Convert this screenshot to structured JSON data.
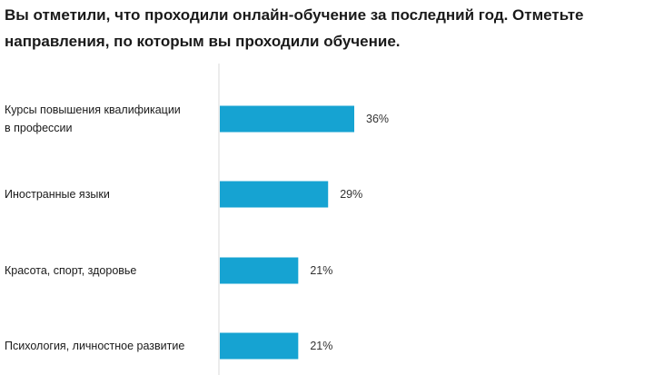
{
  "title": "Вы отметили, что проходили онлайн-обучение за последний год. Отметьте направления, по которым вы проходили обучение.",
  "chart_data": {
    "type": "bar",
    "orientation": "horizontal",
    "categories": [
      [
        "Курсы повышения квалификации",
        "в профессии"
      ],
      [
        "Иностранные языки"
      ],
      [
        "Красота, спорт, здоровье"
      ],
      [
        "Психология, личностное развитие"
      ]
    ],
    "values": [
      36,
      29,
      21,
      21
    ],
    "value_labels": [
      "36%",
      "29%",
      "21%",
      "21%"
    ],
    "unit": "%",
    "bar_color": "#16a3d2",
    "axis_color": "#d8d8d8",
    "grid": false,
    "legend": "none"
  }
}
